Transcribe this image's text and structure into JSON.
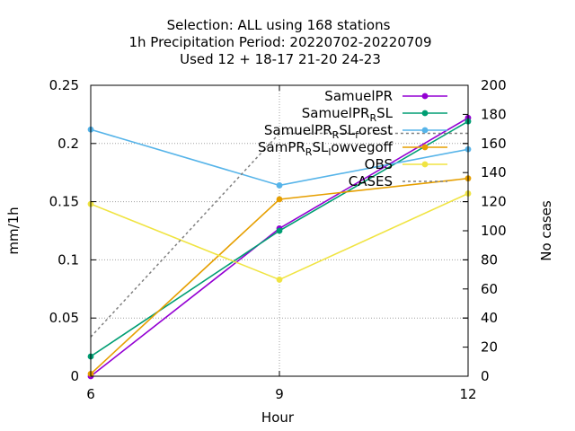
{
  "chart_data": {
    "type": "line",
    "title_lines": [
      "Selection: ALL using   168 stations",
      "1h Precipitation   Period: 20220702-20220709",
      "Used  12 + 18-17 21-20 24-23"
    ],
    "xlabel": "Hour",
    "ylabel": "mm/1h",
    "y2label": "No cases",
    "x": [
      6,
      9,
      12
    ],
    "xticks": [
      "6",
      "9",
      "12"
    ],
    "xlim": [
      6,
      12
    ],
    "ylim": [
      0,
      0.25
    ],
    "yticks": [
      "0",
      "0.05",
      "0.1",
      "0.15",
      "0.2",
      "0.25"
    ],
    "y2lim": [
      0,
      200
    ],
    "y2ticks": [
      "0",
      "20",
      "40",
      "60",
      "80",
      "100",
      "120",
      "140",
      "160",
      "180",
      "200"
    ],
    "grid": true,
    "legend_position": "top-right",
    "series": [
      {
        "name": "SamuelPR",
        "label_parts": [
          [
            "SamuelPR",
            "n"
          ]
        ],
        "color": "#9400d3",
        "axis": "y",
        "values": [
          0.0,
          0.127,
          0.222
        ]
      },
      {
        "name": "SamuelPR_RSL",
        "label_parts": [
          [
            "SamuelPR",
            "n"
          ],
          [
            "R",
            "sub"
          ],
          [
            "SL",
            "n"
          ]
        ],
        "color": "#009e73",
        "axis": "y",
        "values": [
          0.017,
          0.125,
          0.219
        ]
      },
      {
        "name": "SamuelPR_RSL_forest",
        "label_parts": [
          [
            "SamuelPR",
            "n"
          ],
          [
            "R",
            "sub"
          ],
          [
            "SL",
            "n"
          ],
          [
            "f",
            "sub"
          ],
          [
            "orest",
            "n"
          ]
        ],
        "color": "#56b4e9",
        "axis": "y",
        "values": [
          0.212,
          0.164,
          0.195
        ]
      },
      {
        "name": "SamPR_RSL_lowvegoff",
        "label_parts": [
          [
            "SamPR",
            "n"
          ],
          [
            "R",
            "sub"
          ],
          [
            "SL",
            "n"
          ],
          [
            "l",
            "sub"
          ],
          [
            "owvegoff",
            "n"
          ]
        ],
        "color": "#e69f00",
        "axis": "y",
        "values": [
          0.002,
          0.152,
          0.17
        ]
      },
      {
        "name": "OBS",
        "label_parts": [
          [
            "OBS",
            "n"
          ]
        ],
        "color": "#f0e442",
        "axis": "y",
        "values": [
          0.148,
          0.083,
          0.157
        ]
      },
      {
        "name": "CASES",
        "label_parts": [
          [
            "CASES",
            "n"
          ]
        ],
        "color": "#808080",
        "axis": "y2",
        "dashed": true,
        "values": [
          27,
          167,
          167
        ]
      }
    ]
  }
}
